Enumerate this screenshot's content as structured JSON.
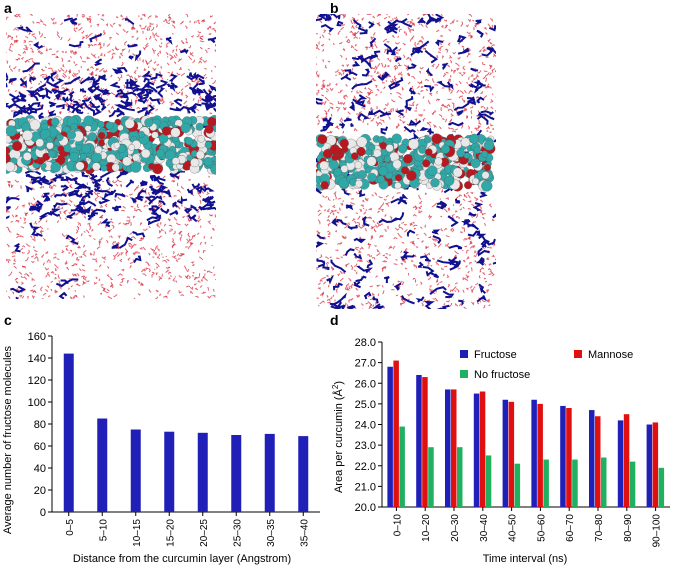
{
  "panels": {
    "a": "a",
    "b": "b",
    "c": "c",
    "d": "d"
  },
  "colors": {
    "fructose": "#2020b8",
    "mannose": "#e01010",
    "no_fructose": "#20b060",
    "water": "#d83040",
    "sugar": "#101090",
    "curcumin_carbon": "#30a8a8",
    "curcumin_oxygen": "#b81820",
    "curcumin_hydrogen": "#e8e8e8"
  },
  "chart_data": [
    {
      "panel": "c",
      "type": "bar",
      "title": "",
      "xlabel": "Distance from the curcumin layer (Angstrom)",
      "ylabel": "Average number of fructose molecules",
      "categories": [
        "0–5",
        "5–10",
        "10–15",
        "15–20",
        "20–25",
        "25–30",
        "30–35",
        "35–40"
      ],
      "series": [
        {
          "values": [
            144,
            85,
            75,
            73,
            72,
            70,
            71,
            69
          ]
        }
      ],
      "ylim": [
        0,
        160
      ],
      "yticks": [
        0,
        20,
        40,
        60,
        80,
        100,
        120,
        140,
        160
      ],
      "grid": false
    },
    {
      "panel": "d",
      "type": "bar",
      "title": "",
      "xlabel": "Time interval (ns)",
      "ylabel": "Area per curcumin (Å²)",
      "categories": [
        "0–10",
        "10–20",
        "20–30",
        "30–40",
        "40–50",
        "50–60",
        "60–70",
        "70–80",
        "80–90",
        "90–100"
      ],
      "series": [
        {
          "name": "Fructose",
          "values": [
            26.8,
            26.4,
            25.7,
            25.5,
            25.2,
            25.2,
            24.9,
            24.7,
            24.2,
            24.0
          ]
        },
        {
          "name": "Mannose",
          "values": [
            27.1,
            26.3,
            25.7,
            25.6,
            25.1,
            25.0,
            24.8,
            24.4,
            24.5,
            24.1
          ]
        },
        {
          "name": "No fructose",
          "values": [
            23.9,
            22.9,
            22.9,
            22.5,
            22.1,
            22.3,
            22.3,
            22.4,
            22.2,
            21.9
          ]
        }
      ],
      "ylim": [
        20.0,
        28.0
      ],
      "yticks": [
        "20.0",
        "21.0",
        "22.0",
        "23.0",
        "24.0",
        "25.0",
        "26.0",
        "27.0",
        "28.0"
      ],
      "legend_position": "top-right",
      "grid": false
    }
  ]
}
